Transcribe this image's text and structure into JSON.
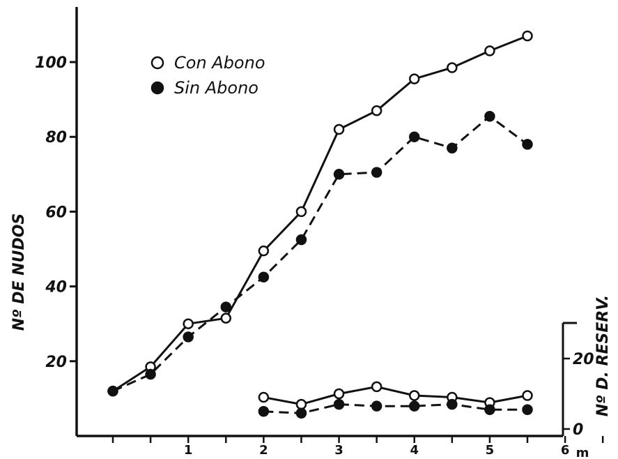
{
  "chart_data": {
    "type": "line",
    "ylabel": "Nº DE NUDOS",
    "y2label": "Nº D. RESERV.",
    "x_unit": "m",
    "xlim": [
      -0.5,
      6
    ],
    "ylim": [
      0,
      110
    ],
    "y2lim": [
      0,
      30
    ],
    "x_tick_labels": [
      {
        "x": 0.5,
        "label": "1"
      },
      {
        "x": 1.5,
        "label": "2"
      },
      {
        "x": 2.5,
        "label": "3"
      },
      {
        "x": 3.5,
        "label": "4"
      },
      {
        "x": 4.5,
        "label": "5"
      },
      {
        "x": 5.5,
        "label": "6"
      }
    ],
    "x_tick_marks": [
      -0.5,
      0.0,
      0.5,
      1.0,
      1.5,
      2.0,
      2.5,
      3.0,
      3.5,
      4.0,
      4.5,
      5.0,
      5.5,
      6.0
    ],
    "y_ticks": [
      {
        "value": 20,
        "label": "20"
      },
      {
        "value": 40,
        "label": "40"
      },
      {
        "value": 60,
        "label": "60"
      },
      {
        "value": 80,
        "label": "80"
      },
      {
        "value": 100,
        "label": "100"
      }
    ],
    "y2_ticks": [
      {
        "value": 0,
        "label": "0"
      },
      {
        "value": 20,
        "label": "20"
      }
    ],
    "series": [
      {
        "name": "Con Abono",
        "marker": "open",
        "style": "solid",
        "axis": "left",
        "x": [
          -0.5,
          0.0,
          0.5,
          1.0,
          1.5,
          2.0,
          2.5,
          3.0,
          3.5,
          4.0,
          4.5,
          5.0
        ],
        "y": [
          12,
          18.5,
          30,
          31.5,
          49.5,
          60,
          82,
          87,
          95.5,
          98.5,
          103,
          107
        ]
      },
      {
        "name": "Sin Abono",
        "marker": "filled",
        "style": "dashed",
        "axis": "left",
        "x": [
          -0.5,
          0.0,
          0.5,
          1.0,
          1.5,
          2.0,
          2.5,
          3.0,
          3.5,
          4.0,
          4.5,
          5.0
        ],
        "y": [
          12,
          16.5,
          26.5,
          34.5,
          42.5,
          52.5,
          70,
          70.5,
          80,
          77,
          85.5,
          78
        ]
      },
      {
        "name": "Con Abono",
        "marker": "open",
        "style": "solid",
        "axis": "right",
        "x": [
          1.5,
          2.0,
          2.5,
          3.0,
          3.5,
          4.0,
          4.5,
          5.0
        ],
        "y": [
          9,
          7,
          10,
          12,
          9.5,
          9,
          7.5,
          9.5
        ]
      },
      {
        "name": "Sin Abono",
        "marker": "filled",
        "style": "dashed",
        "axis": "right",
        "x": [
          1.5,
          2.0,
          2.5,
          3.0,
          3.5,
          4.0,
          4.5,
          5.0
        ],
        "y": [
          5,
          4.5,
          7,
          6.5,
          6.5,
          7,
          5.5,
          5.5
        ]
      }
    ],
    "legend": {
      "position": "top-left",
      "entries": [
        {
          "label": "Con Abono",
          "marker": "open"
        },
        {
          "label": "Sin Abono",
          "marker": "filled"
        }
      ]
    },
    "colors": {
      "ink": "#111111",
      "background": "#ffffff"
    }
  }
}
